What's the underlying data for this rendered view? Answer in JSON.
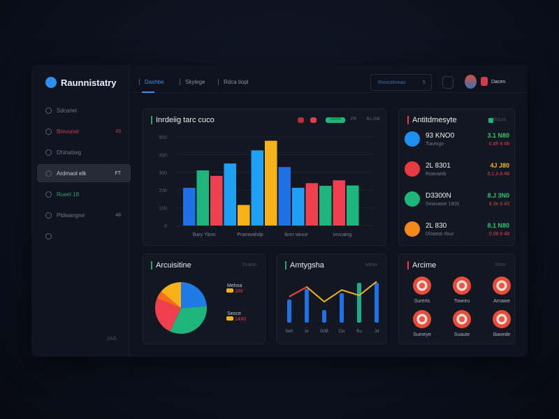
{
  "app": {
    "title": "Raunnistatry",
    "user": "Dacen"
  },
  "header": {
    "tabs": [
      {
        "label": "Dashbe",
        "active": true
      },
      {
        "label": "Skylege"
      },
      {
        "label": "Rdca tiopl"
      }
    ],
    "search_placeholder": "Roncolmeau",
    "search_key": "S"
  },
  "sidebar": {
    "items": [
      {
        "label": "Sdcanel"
      },
      {
        "label": "Brevuner",
        "badge": "43",
        "color": "#c9404c"
      },
      {
        "label": "Dhinatiwg"
      },
      {
        "label": "Ardmaol elk",
        "badge": "FT",
        "active": true
      },
      {
        "label": "Rueel 18",
        "color": "#2aa36a"
      },
      {
        "label": "Ptdwangne",
        "badge": "48"
      },
      {
        "label": ""
      }
    ],
    "footer": "2AG"
  },
  "bar_card": {
    "title": "Inrdeiig tarc cuco",
    "chips": [
      "",
      "",
      "Sahre",
      "PR",
      "Bu 208"
    ],
    "chart_data": {
      "type": "bar",
      "yticks": [
        "0",
        "100",
        "200",
        "300",
        "400",
        "500"
      ],
      "ylim": [
        0,
        500
      ],
      "xlabels": [
        "Bary Ybno",
        "Pramwahdp",
        "ikrnr wiuce",
        "irrvcaing"
      ],
      "values": [
        213,
        311,
        280,
        350,
        116,
        424,
        478,
        330,
        213,
        239,
        224,
        255,
        226
      ],
      "colors": [
        "#1f6fe5",
        "#1db57b",
        "#f0404f",
        "#1ea0f5",
        "#f7b21a",
        "#1ea0f5",
        "#f7b21a",
        "#1f6fe5",
        "#1ea0f5",
        "#f0404f",
        "#1db57b",
        "#f0404f",
        "#1db57b"
      ]
    }
  },
  "list_card": {
    "title": "Antitdmesyte",
    "meta": "Eduia",
    "rows": [
      {
        "name": "93 KNO0",
        "sub": "Tiaviogo",
        "v1": "3.1 N80",
        "v2": "0.8h 8 48",
        "color": "#1e90f0",
        "v1color": "#2ec46e"
      },
      {
        "name": "2L 8301",
        "sub": "Roavaeib",
        "v1": "4J J80",
        "v2": "6.1 A 8.48",
        "color": "#e63a45",
        "v1color": "#f2b61c"
      },
      {
        "name": "D3300N",
        "sub": "Sinavawe 1903",
        "v1": "8.J 3N0",
        "v2": "8.3e 8 43",
        "color": "#1db57b",
        "v1color": "#2ec46e"
      },
      {
        "name": "2L 830",
        "sub": "Dloaeat rfour",
        "v1": "8.1 N80",
        "v2": "0.08 8 48",
        "color": "#f58a1a",
        "v1color": "#2ec46e"
      }
    ]
  },
  "pie_card": {
    "title": "Arcuisitine",
    "meta": "Drawo",
    "legend": [
      {
        "label": "Mehna",
        "value": "189"
      },
      {
        "label": "Seoce",
        "value": "14X0"
      }
    ],
    "chart_data": {
      "type": "pie",
      "values": [
        24,
        33,
        24,
        5,
        14
      ],
      "colors": [
        "#1f7ae6",
        "#1db57b",
        "#f0404f",
        "#f96a1f",
        "#f7b21a"
      ]
    }
  },
  "line_card": {
    "title": "Amtygsha",
    "meta": "Ideas",
    "chart_data": {
      "type": "bar+line",
      "xlabels": [
        "Neh",
        "Ar",
        "D0B",
        "Clo",
        "Ru",
        "Jd"
      ],
      "bars": [
        55,
        80,
        30,
        70,
        95,
        95
      ],
      "line": [
        62,
        85,
        50,
        78,
        65,
        98
      ]
    }
  },
  "alert_card": {
    "title": "Arcime",
    "meta": "Slute",
    "items": [
      "Surerts",
      "Towreu",
      "Arnawe",
      "Sumeye",
      "Suaute",
      "Ibavede"
    ]
  }
}
